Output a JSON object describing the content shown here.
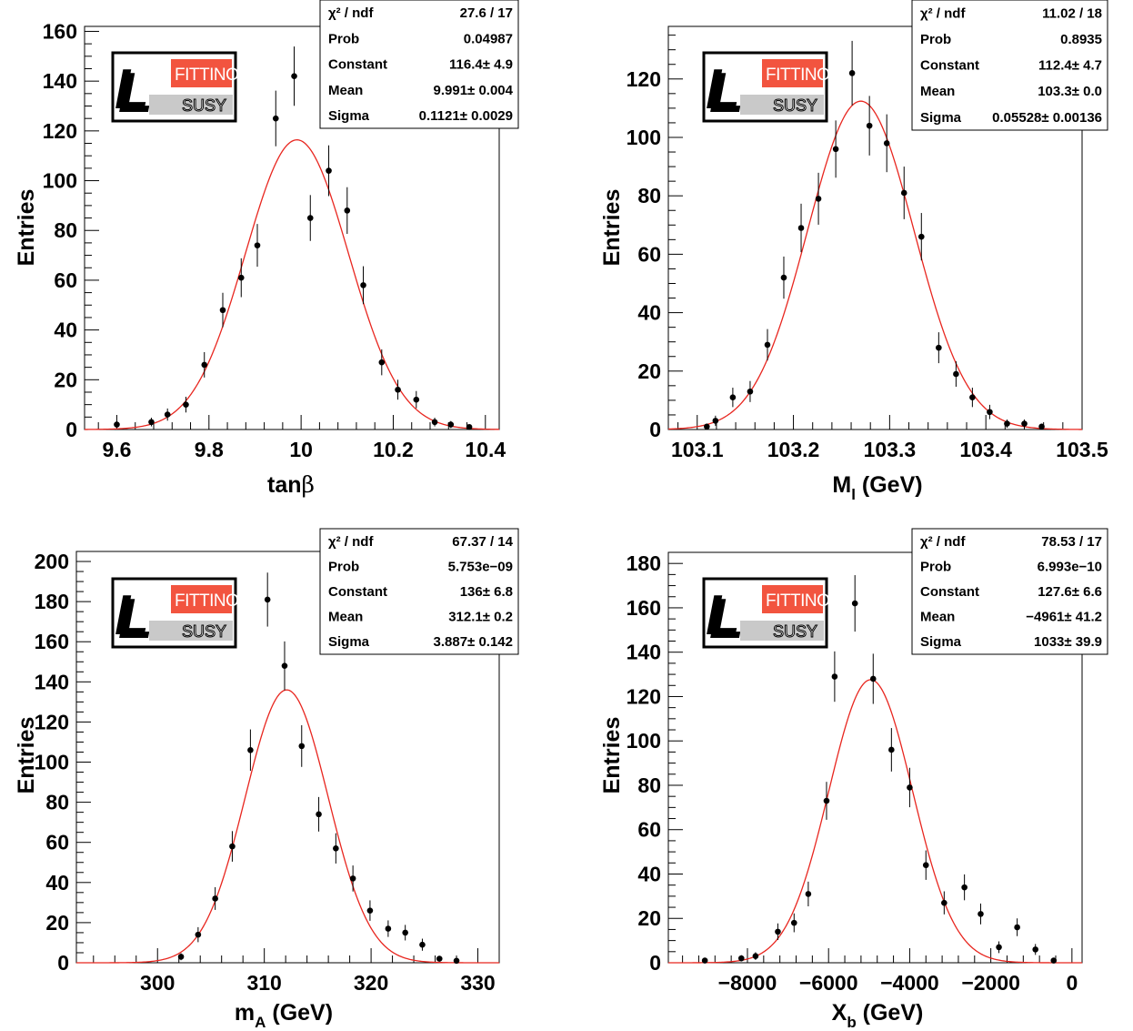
{
  "logo": {
    "brand": "FITTINO",
    "sub": "SUSY",
    "glyph": "L"
  },
  "colors": {
    "fit": "#e8261f",
    "points": "#000000",
    "logo_red": "#f2543f"
  },
  "chart_data": [
    {
      "type": "scatter",
      "title": "",
      "xlabel": "tanβ",
      "xlabel_main": "tan",
      "xlabel_greek": "β",
      "ylabel": "Entries",
      "xlim": [
        9.53,
        10.43
      ],
      "ylim": [
        0,
        162
      ],
      "xticks": [
        9.6,
        9.8,
        10,
        10.2,
        10.4
      ],
      "xtick_labels": [
        "9.6",
        "9.8",
        "10",
        "10.2",
        "10.4"
      ],
      "yticks": [
        0,
        20,
        40,
        60,
        80,
        100,
        120,
        140,
        160
      ],
      "ytick_labels": [
        "0",
        "20",
        "40",
        "60",
        "80",
        "100",
        "120",
        "140",
        "160"
      ],
      "points": [
        {
          "x": 9.6,
          "y": 2
        },
        {
          "x": 9.675,
          "y": 3
        },
        {
          "x": 9.71,
          "y": 6
        },
        {
          "x": 9.75,
          "y": 10
        },
        {
          "x": 9.79,
          "y": 26
        },
        {
          "x": 9.83,
          "y": 48
        },
        {
          "x": 9.87,
          "y": 61
        },
        {
          "x": 9.905,
          "y": 74
        },
        {
          "x": 9.945,
          "y": 125
        },
        {
          "x": 9.985,
          "y": 142
        },
        {
          "x": 10.02,
          "y": 85
        },
        {
          "x": 10.06,
          "y": 104
        },
        {
          "x": 10.1,
          "y": 88
        },
        {
          "x": 10.135,
          "y": 58
        },
        {
          "x": 10.175,
          "y": 27
        },
        {
          "x": 10.21,
          "y": 16
        },
        {
          "x": 10.25,
          "y": 12
        },
        {
          "x": 10.29,
          "y": 3
        },
        {
          "x": 10.325,
          "y": 2
        },
        {
          "x": 10.365,
          "y": 1
        }
      ],
      "fit": {
        "constant": 116.4,
        "mean": 9.991,
        "sigma": 0.1121
      },
      "stats": [
        {
          "label": "χ² / ndf",
          "value": "27.6 / 17"
        },
        {
          "label": "Prob",
          "value": "0.04987"
        },
        {
          "label": "Constant",
          "value": "116.4± 4.9"
        },
        {
          "label": "Mean",
          "value": "9.991± 0.004"
        },
        {
          "label": "Sigma",
          "value": "0.1121± 0.0029"
        }
      ]
    },
    {
      "type": "scatter",
      "title": "",
      "xlabel": "Ml (GeV)",
      "xlabel_main": "M",
      "xlabel_sub": "l",
      "xlabel_unit": " (GeV)",
      "ylabel": "Entries",
      "xlim": [
        103.07,
        103.5
      ],
      "ylim": [
        0,
        138
      ],
      "xticks": [
        103.1,
        103.2,
        103.3,
        103.4,
        103.5
      ],
      "xtick_labels": [
        "103.1",
        "103.2",
        "103.3",
        "103.4",
        "103.5"
      ],
      "yticks": [
        0,
        20,
        40,
        60,
        80,
        100,
        120
      ],
      "ytick_labels": [
        "0",
        "20",
        "40",
        "60",
        "80",
        "100",
        "120"
      ],
      "points": [
        {
          "x": 103.11,
          "y": 1
        },
        {
          "x": 103.119,
          "y": 3
        },
        {
          "x": 103.137,
          "y": 11
        },
        {
          "x": 103.155,
          "y": 13
        },
        {
          "x": 103.173,
          "y": 29
        },
        {
          "x": 103.19,
          "y": 52
        },
        {
          "x": 103.208,
          "y": 69
        },
        {
          "x": 103.226,
          "y": 79
        },
        {
          "x": 103.244,
          "y": 96
        },
        {
          "x": 103.261,
          "y": 122
        },
        {
          "x": 103.279,
          "y": 104
        },
        {
          "x": 103.297,
          "y": 98
        },
        {
          "x": 103.315,
          "y": 81
        },
        {
          "x": 103.333,
          "y": 66
        },
        {
          "x": 103.351,
          "y": 28
        },
        {
          "x": 103.369,
          "y": 19
        },
        {
          "x": 103.386,
          "y": 11
        },
        {
          "x": 103.404,
          "y": 6
        },
        {
          "x": 103.422,
          "y": 2
        },
        {
          "x": 103.44,
          "y": 2
        },
        {
          "x": 103.458,
          "y": 1
        }
      ],
      "fit": {
        "constant": 112.4,
        "mean": 103.27,
        "sigma": 0.05528
      },
      "stats": [
        {
          "label": "χ² / ndf",
          "value": "11.02 / 18"
        },
        {
          "label": "Prob",
          "value": "0.8935"
        },
        {
          "label": "Constant",
          "value": "112.4± 4.7"
        },
        {
          "label": "Mean",
          "value": "103.3± 0.0"
        },
        {
          "label": "Sigma",
          "value": "0.05528± 0.00136"
        }
      ]
    },
    {
      "type": "scatter",
      "title": "",
      "xlabel": "mA (GeV)",
      "xlabel_main": "m",
      "xlabel_sub": "A",
      "xlabel_unit": " (GeV)",
      "ylabel": "Entries",
      "xlim": [
        292.4,
        332
      ],
      "ylim": [
        0,
        205
      ],
      "xticks": [
        300,
        310,
        320,
        330
      ],
      "xtick_labels": [
        "300",
        "310",
        "320",
        "330"
      ],
      "yticks": [
        0,
        20,
        40,
        60,
        80,
        100,
        120,
        140,
        160,
        180,
        200
      ],
      "ytick_labels": [
        "0",
        "20",
        "40",
        "60",
        "80",
        "100",
        "120",
        "140",
        "160",
        "180",
        "200"
      ],
      "points": [
        {
          "x": 302.2,
          "y": 3
        },
        {
          "x": 303.8,
          "y": 14
        },
        {
          "x": 305.4,
          "y": 32
        },
        {
          "x": 307.0,
          "y": 58
        },
        {
          "x": 308.7,
          "y": 106
        },
        {
          "x": 310.3,
          "y": 181
        },
        {
          "x": 311.9,
          "y": 148
        },
        {
          "x": 313.5,
          "y": 108
        },
        {
          "x": 315.1,
          "y": 74
        },
        {
          "x": 316.7,
          "y": 57
        },
        {
          "x": 318.3,
          "y": 42
        },
        {
          "x": 319.9,
          "y": 26
        },
        {
          "x": 321.6,
          "y": 17
        },
        {
          "x": 323.2,
          "y": 15
        },
        {
          "x": 324.8,
          "y": 9
        },
        {
          "x": 326.4,
          "y": 2
        },
        {
          "x": 328.0,
          "y": 1
        }
      ],
      "fit": {
        "constant": 136,
        "mean": 312.1,
        "sigma": 3.887
      },
      "stats": [
        {
          "label": "χ² / ndf",
          "value": "67.37 / 14"
        },
        {
          "label": "Prob",
          "value": "5.753e−09"
        },
        {
          "label": "Constant",
          "value": "136± 6.8"
        },
        {
          "label": "Mean",
          "value": "312.1± 0.2"
        },
        {
          "label": "Sigma",
          "value": "3.887± 0.142"
        }
      ]
    },
    {
      "type": "scatter",
      "title": "",
      "xlabel": "Xb (GeV)",
      "xlabel_main": "X",
      "xlabel_sub": "b",
      "xlabel_unit": " (GeV)",
      "ylabel": "Entries",
      "xlim": [
        -9950,
        250
      ],
      "ylim": [
        0,
        185
      ],
      "xticks": [
        -8000,
        -6000,
        -4000,
        -2000,
        0
      ],
      "xtick_labels": [
        "−8000",
        "−6000",
        "−4000",
        "−2000",
        "0"
      ],
      "yticks": [
        0,
        20,
        40,
        60,
        80,
        100,
        120,
        140,
        160,
        180
      ],
      "ytick_labels": [
        "0",
        "20",
        "40",
        "60",
        "80",
        "100",
        "120",
        "140",
        "160",
        "180"
      ],
      "points": [
        {
          "x": -9050,
          "y": 1
        },
        {
          "x": -8150,
          "y": 2
        },
        {
          "x": -7800,
          "y": 3
        },
        {
          "x": -7250,
          "y": 14
        },
        {
          "x": -6850,
          "y": 18
        },
        {
          "x": -6500,
          "y": 31
        },
        {
          "x": -6050,
          "y": 73
        },
        {
          "x": -5350,
          "y": 162
        },
        {
          "x": -5850,
          "y": 129
        },
        {
          "x": -4900,
          "y": 128
        },
        {
          "x": -4450,
          "y": 96
        },
        {
          "x": -4000,
          "y": 79
        },
        {
          "x": -3600,
          "y": 44
        },
        {
          "x": -3150,
          "y": 27
        },
        {
          "x": -2650,
          "y": 34
        },
        {
          "x": -2250,
          "y": 22
        },
        {
          "x": -1800,
          "y": 7
        },
        {
          "x": -1350,
          "y": 16
        },
        {
          "x": -900,
          "y": 6
        },
        {
          "x": -450,
          "y": 1
        }
      ],
      "fit": {
        "constant": 127.6,
        "mean": -4961,
        "sigma": 1033
      },
      "stats": [
        {
          "label": "χ² / ndf",
          "value": "78.53 / 17"
        },
        {
          "label": "Prob",
          "value": "6.993e−10"
        },
        {
          "label": "Constant",
          "value": "127.6± 6.6"
        },
        {
          "label": "Mean",
          "value": "−4961± 41.2"
        },
        {
          "label": "Sigma",
          "value": "1033± 39.9"
        }
      ]
    }
  ]
}
